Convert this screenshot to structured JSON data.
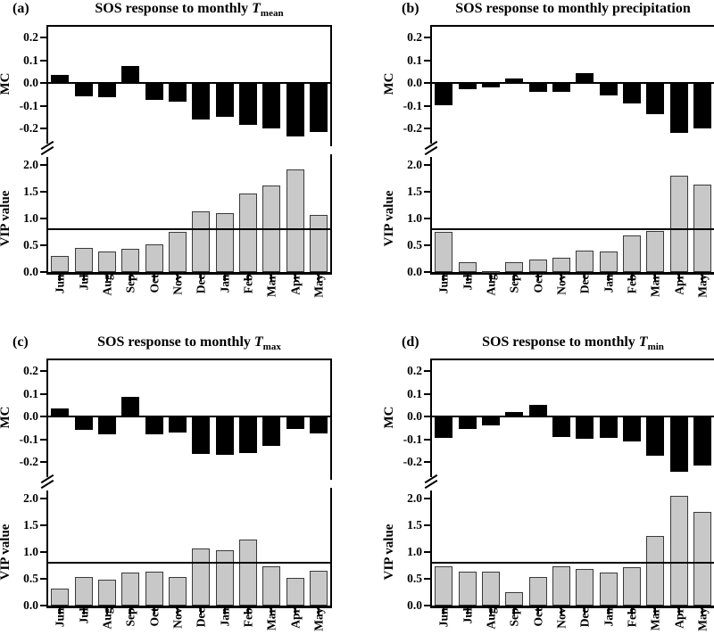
{
  "colors": {
    "mc_bar": "#000000",
    "vip_bar": "#c8c8c8",
    "vip_bar_border": "#3a3a3a",
    "axis": "#000000",
    "threshold_line": "#000000",
    "background": "#ffffff"
  },
  "chart_data": [
    {
      "type": "bar",
      "panel_label": "(a)",
      "title": {
        "prefix": "SOS response to monthly ",
        "symbol": "T",
        "subscript": "mean"
      },
      "categories": [
        "Jun",
        "Jul",
        "Aug",
        "Sep",
        "Oct",
        "Nov",
        "Dec",
        "Jan",
        "Feb",
        "Mar",
        "Apr",
        "May"
      ],
      "axis_break": true,
      "series": [
        {
          "name": "MC",
          "values": [
            0.035,
            -0.055,
            -0.06,
            0.075,
            -0.07,
            -0.08,
            -0.155,
            -0.145,
            -0.18,
            -0.195,
            -0.23,
            -0.21
          ],
          "ylim": [
            -0.27,
            0.25
          ],
          "yticks": [
            "0.2",
            "0.1",
            "0.0",
            "-0.1",
            "-0.2"
          ]
        },
        {
          "name": "VIP value",
          "values": [
            0.3,
            0.45,
            0.38,
            0.43,
            0.52,
            0.75,
            1.13,
            1.1,
            1.47,
            1.62,
            1.92,
            1.06
          ],
          "ylim": [
            0,
            2.3
          ],
          "yticks": [
            "2.0",
            "1.5",
            "1.0",
            "0.5",
            "0.0"
          ],
          "threshold_line": 0.8
        }
      ]
    },
    {
      "type": "bar",
      "panel_label": "(b)",
      "title": {
        "prefix": "SOS response to monthly precipitation",
        "symbol": "",
        "subscript": ""
      },
      "categories": [
        "Jun",
        "Jul",
        "Aug",
        "Sep",
        "Oct",
        "Nov",
        "Dec",
        "Jan",
        "Feb",
        "Mar",
        "Apr",
        "May"
      ],
      "axis_break": true,
      "series": [
        {
          "name": "MC",
          "values": [
            -0.095,
            -0.025,
            -0.015,
            0.02,
            -0.035,
            -0.035,
            0.045,
            -0.05,
            -0.085,
            -0.135,
            -0.215,
            -0.195
          ],
          "ylim": [
            -0.27,
            0.25
          ],
          "yticks": [
            "0.2",
            "0.1",
            "0.0",
            "-0.1",
            "-0.2"
          ]
        },
        {
          "name": "VIP value",
          "values": [
            0.75,
            0.19,
            0.02,
            0.19,
            0.24,
            0.26,
            0.4,
            0.39,
            0.69,
            0.76,
            1.8,
            1.64
          ],
          "ylim": [
            0,
            2.3
          ],
          "yticks": [
            "2.0",
            "1.5",
            "1.0",
            "0.5",
            "0.0"
          ],
          "threshold_line": 0.8
        }
      ]
    },
    {
      "type": "bar",
      "panel_label": "(c)",
      "title": {
        "prefix": "SOS response to monthly ",
        "symbol": "T",
        "subscript": "max"
      },
      "categories": [
        "Jun",
        "Jul",
        "Aug",
        "Sep",
        "Oct",
        "Nov",
        "Dec",
        "Jan",
        "Feb",
        "Mar",
        "Apr",
        "May"
      ],
      "axis_break": true,
      "series": [
        {
          "name": "MC",
          "values": [
            0.035,
            -0.055,
            -0.075,
            0.085,
            -0.075,
            -0.065,
            -0.16,
            -0.165,
            -0.155,
            -0.125,
            -0.05,
            -0.07
          ],
          "ylim": [
            -0.27,
            0.25
          ],
          "yticks": [
            "0.2",
            "0.1",
            "0.0",
            "-0.1",
            "-0.2"
          ]
        },
        {
          "name": "VIP value",
          "values": [
            0.32,
            0.53,
            0.49,
            0.61,
            0.64,
            0.53,
            1.07,
            1.03,
            1.23,
            0.73,
            0.52,
            0.65
          ],
          "ylim": [
            0,
            2.3
          ],
          "yticks": [
            "2.0",
            "1.5",
            "1.0",
            "0.5",
            "0.0"
          ],
          "threshold_line": 0.8
        }
      ]
    },
    {
      "type": "bar",
      "panel_label": "(d)",
      "title": {
        "prefix": "SOS response to monthly ",
        "symbol": "T",
        "subscript": "min"
      },
      "categories": [
        "Jun",
        "Jul",
        "Aug",
        "Sep",
        "Oct",
        "Nov",
        "Dec",
        "Jan",
        "Feb",
        "Mar",
        "Apr",
        "May"
      ],
      "axis_break": true,
      "series": [
        {
          "name": "MC",
          "values": [
            -0.09,
            -0.05,
            -0.035,
            0.02,
            0.05,
            -0.085,
            -0.095,
            -0.09,
            -0.105,
            -0.17,
            -0.24,
            -0.21
          ],
          "ylim": [
            -0.27,
            0.25
          ],
          "yticks": [
            "0.2",
            "0.1",
            "0.0",
            "-0.1",
            "-0.2"
          ]
        },
        {
          "name": "VIP value",
          "values": [
            0.74,
            0.63,
            0.63,
            0.25,
            0.54,
            0.73,
            0.68,
            0.62,
            0.72,
            1.3,
            2.05,
            1.75
          ],
          "ylim": [
            0,
            2.3
          ],
          "yticks": [
            "2.0",
            "1.5",
            "1.0",
            "0.5",
            "0.0"
          ],
          "threshold_line": 0.8
        }
      ]
    }
  ]
}
